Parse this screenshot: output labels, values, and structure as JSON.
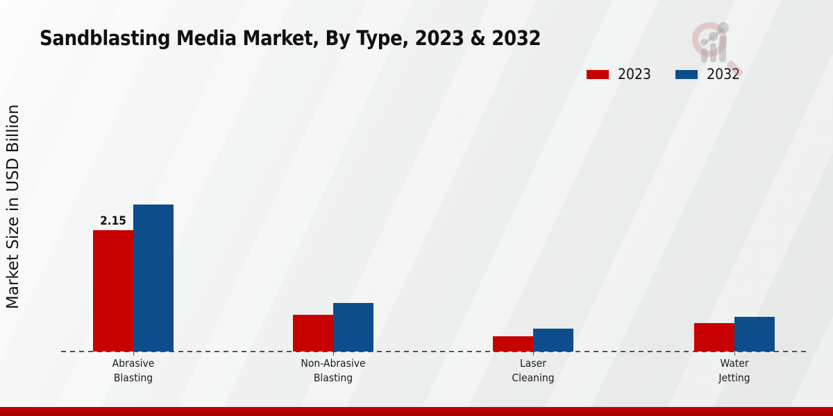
{
  "title": "Sandblasting Media Market, By Type, 2023 & 2032",
  "y_axis_label": "Market Size in USD Billion",
  "legend": {
    "items": [
      {
        "label": "2023",
        "color": "#c70100"
      },
      {
        "label": "2032",
        "color": "#0d4d8c"
      }
    ]
  },
  "colors": {
    "series_2023": "#c70100",
    "series_2032": "#0d4d8c",
    "baseline": "#4f4f4f",
    "bottom_stripe": "#c60200",
    "background": "#ededed"
  },
  "watermark": {
    "name": "market-research-magnifier-logo"
  },
  "chart_data": {
    "type": "bar",
    "title": "Sandblasting Media Market, By Type, 2023 & 2032",
    "xlabel": "",
    "ylabel": "Market Size in USD Billion",
    "categories": [
      "Abrasive Blasting",
      "Non-Abrasive Blasting",
      "Laser Cleaning",
      "Water Jetting"
    ],
    "category_lines": [
      [
        "Abrasive",
        "Blasting"
      ],
      [
        "Non-Abrasive",
        "Blasting"
      ],
      [
        "Laser",
        "Cleaning"
      ],
      [
        "Water",
        "Jetting"
      ]
    ],
    "series": [
      {
        "name": "2023",
        "color": "#c70100",
        "values": [
          2.15,
          0.65,
          0.27,
          0.5
        ]
      },
      {
        "name": "2032",
        "color": "#0d4d8c",
        "values": [
          2.6,
          0.86,
          0.41,
          0.61
        ]
      }
    ],
    "data_labels": [
      {
        "series_index": 0,
        "category_index": 0,
        "text": "2.15"
      }
    ],
    "ylim": [
      0,
      2.8
    ],
    "grid": false,
    "axis_line_style": "dashed",
    "legend_position": "top-right"
  }
}
